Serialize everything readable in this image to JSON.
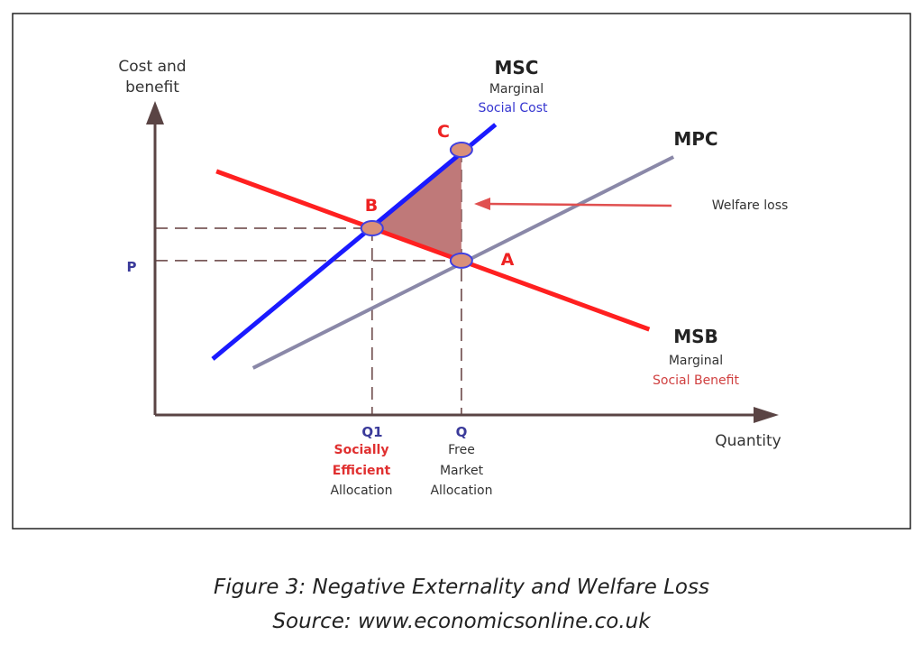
{
  "chart_data": {
    "type": "line",
    "title": "Negative Externality and Welfare Loss",
    "xlabel": "Quantity",
    "ylabel": "Cost and benefit",
    "ylabel_lines": [
      "Cost and",
      "benefit"
    ],
    "xlim": [
      0,
      10
    ],
    "ylim": [
      0,
      10
    ],
    "grid": false,
    "series": [
      {
        "name": "MSC",
        "caption": [
          "Marginal",
          "Social Cost"
        ],
        "color": "#1a1aff",
        "x": [
          0.93,
          5.49
        ],
        "y": [
          1.8,
          9.33
        ]
      },
      {
        "name": "MSB",
        "caption": [
          "Marginal",
          "Social Benefit"
        ],
        "color": "#ff2020",
        "x": [
          0.99,
          7.97
        ],
        "y": [
          7.83,
          2.75
        ]
      },
      {
        "name": "MPC",
        "caption": [],
        "color": "#8a88a8",
        "x": [
          1.58,
          8.36
        ],
        "y": [
          1.51,
          8.29
        ]
      }
    ],
    "points": [
      {
        "label": "B",
        "x": 3.5,
        "y": 6.0
      },
      {
        "label": "A",
        "x": 4.94,
        "y": 4.96
      },
      {
        "label": "C",
        "x": 4.94,
        "y": 8.52
      }
    ],
    "price_label": "P",
    "x_ticks": [
      {
        "label": "Q1",
        "x": 3.5,
        "desc": [
          "Socially",
          "Efficient",
          "Allocation"
        ]
      },
      {
        "label": "Q",
        "x": 4.94,
        "desc": [
          "Free",
          "Market",
          "Allocation"
        ]
      }
    ],
    "annotation": "Welfare loss"
  },
  "caption": {
    "figure": "Figure 3: Negative Externality and Welfare Loss",
    "source": "Source: www.economicsonline.co.uk"
  }
}
